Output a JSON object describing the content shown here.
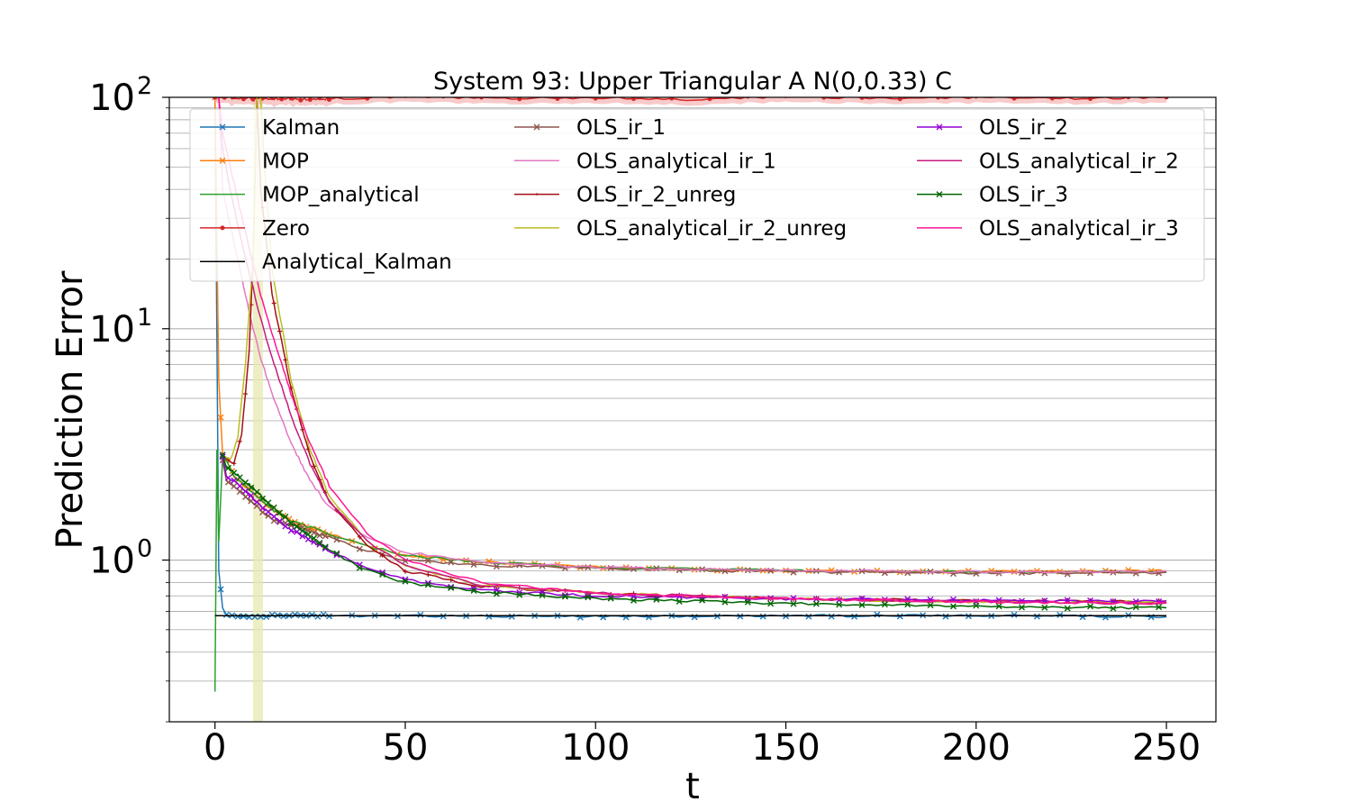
{
  "chart_data": {
    "type": "line",
    "title": "System 93: Upper Triangular A N(0,0.33) C",
    "xlabel": "t",
    "ylabel": "Prediction Error",
    "xlim": [
      -12,
      263
    ],
    "ylim": [
      0.2,
      100
    ],
    "yscale": "log",
    "grid": "y-major-and-minor",
    "legend_position": "top",
    "x_ticks": [
      0,
      50,
      100,
      150,
      200,
      250
    ],
    "x_tick_labels": [
      "0",
      "50",
      "100",
      "150",
      "200",
      "250"
    ],
    "y_ticks": [
      1,
      10,
      100
    ],
    "y_tick_labels": [
      "10",
      "10",
      "10"
    ],
    "y_tick_exponents": [
      "0",
      "1",
      "2"
    ],
    "highlight_band": {
      "x0": 10,
      "x1": 12.6,
      "color": "#e8e8b0"
    },
    "series": [
      {
        "name": "Kalman",
        "color": "#1f77b4",
        "marker": "x",
        "x": [
          0,
          1,
          2,
          3,
          5,
          10,
          20,
          50,
          100,
          150,
          200,
          250
        ],
        "values": [
          100,
          0.9,
          0.62,
          0.58,
          0.57,
          0.575,
          0.575,
          0.575,
          0.57,
          0.575,
          0.575,
          0.57
        ]
      },
      {
        "name": "MOP",
        "color": "#ff7f0e",
        "marker": "x",
        "x": [
          0,
          1,
          2,
          3,
          5,
          10,
          15,
          20,
          30,
          40,
          50,
          70,
          100,
          150,
          200,
          250
        ],
        "values": [
          100,
          6,
          2.85,
          2.7,
          2.3,
          1.95,
          1.65,
          1.48,
          1.3,
          1.15,
          1.05,
          0.98,
          0.93,
          0.9,
          0.89,
          0.9
        ]
      },
      {
        "name": "MOP_analytical",
        "color": "#2ca02c",
        "marker": "",
        "x": [
          0,
          0.5,
          1,
          2,
          3,
          5,
          10,
          15,
          20,
          30,
          40,
          50,
          70,
          100,
          150,
          200,
          250
        ],
        "values": [
          0.27,
          3,
          1.2,
          2.8,
          2.7,
          2.3,
          1.95,
          1.65,
          1.48,
          1.3,
          1.15,
          1.05,
          0.98,
          0.93,
          0.9,
          0.89,
          0.89
        ]
      },
      {
        "name": "Zero",
        "color": "#d62728",
        "marker": "o",
        "x": [
          0,
          25,
          50,
          75,
          100,
          125,
          150,
          175,
          200,
          225,
          250
        ],
        "values": [
          100,
          98,
          101,
          99,
          100,
          98,
          101,
          99,
          100,
          99,
          100
        ]
      },
      {
        "name": "Analytical_Kalman",
        "color": "#000000",
        "marker": "",
        "x": [
          0,
          250
        ],
        "values": [
          0.575,
          0.575
        ]
      },
      {
        "name": "OLS_ir_1",
        "color": "#8c564b",
        "marker": "x",
        "x": [
          2,
          3,
          5,
          10,
          15,
          20,
          30,
          40,
          50,
          70,
          100,
          150,
          200,
          250
        ],
        "values": [
          2.7,
          2.2,
          2.1,
          1.75,
          1.5,
          1.42,
          1.25,
          1.1,
          1.0,
          0.95,
          0.92,
          0.89,
          0.88,
          0.88
        ]
      },
      {
        "name": "OLS_analytical_ir_1",
        "color": "#e377c2",
        "marker": "",
        "x": [
          1,
          2,
          4,
          6,
          8,
          10,
          12,
          15,
          20,
          25,
          30,
          40,
          50,
          70,
          100,
          150,
          200,
          250
        ],
        "values": [
          100,
          40,
          28,
          20,
          14,
          10,
          7.5,
          5.2,
          3.2,
          2.2,
          1.7,
          1.25,
          1.08,
          0.98,
          0.93,
          0.9,
          0.89,
          0.89
        ]
      },
      {
        "name": "OLS_ir_2_unreg",
        "color": "#a50f15",
        "marker": "+",
        "x": [
          2,
          3,
          5,
          7,
          9,
          10,
          11,
          12,
          15,
          20,
          25,
          30,
          40,
          50,
          70,
          100,
          150,
          200,
          250
        ],
        "values": [
          2.85,
          2.75,
          2.6,
          3.5,
          8,
          20,
          100,
          40,
          14,
          5.5,
          2.8,
          1.8,
          1.15,
          0.9,
          0.77,
          0.72,
          0.68,
          0.67,
          0.66
        ]
      },
      {
        "name": "OLS_analytical_ir_2_unreg",
        "color": "#bcbd22",
        "marker": "",
        "x": [
          2,
          4,
          6,
          8,
          10,
          11,
          12,
          13,
          15,
          20,
          25,
          30,
          40,
          50,
          70,
          100,
          150,
          200,
          250
        ],
        "values": [
          2.85,
          2.7,
          3.4,
          7,
          20,
          100,
          100,
          50,
          18,
          6,
          3,
          1.9,
          1.2,
          0.95,
          0.78,
          0.72,
          0.68,
          0.66,
          0.66
        ]
      },
      {
        "name": "OLS_ir_2",
        "color": "#9400d3",
        "marker": "x",
        "x": [
          2,
          3,
          5,
          10,
          15,
          20,
          30,
          40,
          50,
          70,
          100,
          150,
          200,
          250
        ],
        "values": [
          2.8,
          2.3,
          2.2,
          1.85,
          1.55,
          1.35,
          1.1,
          0.92,
          0.82,
          0.74,
          0.7,
          0.68,
          0.67,
          0.66
        ]
      },
      {
        "name": "OLS_analytical_ir_2",
        "color": "#c51b7d",
        "marker": "",
        "x": [
          1,
          2,
          4,
          6,
          8,
          10,
          12,
          15,
          20,
          25,
          30,
          40,
          50,
          70,
          100,
          150,
          200,
          250
        ],
        "values": [
          100,
          60,
          40,
          28,
          20,
          15,
          11,
          7.5,
          4.2,
          2.6,
          1.8,
          1.2,
          0.95,
          0.78,
          0.72,
          0.68,
          0.66,
          0.65
        ]
      },
      {
        "name": "OLS_ir_3",
        "color": "#006400",
        "marker": "x",
        "x": [
          2,
          3,
          5,
          10,
          15,
          20,
          30,
          40,
          50,
          70,
          100,
          150,
          200,
          250
        ],
        "values": [
          2.85,
          2.5,
          2.4,
          2.05,
          1.7,
          1.45,
          1.1,
          0.9,
          0.8,
          0.73,
          0.68,
          0.65,
          0.63,
          0.62
        ]
      },
      {
        "name": "OLS_analytical_ir_3",
        "color": "#ff1493",
        "marker": "",
        "x": [
          1,
          2,
          4,
          6,
          8,
          10,
          12,
          15,
          20,
          25,
          30,
          40,
          50,
          70,
          100,
          150,
          200,
          250
        ],
        "values": [
          100,
          70,
          50,
          36,
          26,
          19,
          14,
          9.5,
          5.2,
          3.2,
          2.1,
          1.3,
          1.0,
          0.8,
          0.72,
          0.68,
          0.66,
          0.65
        ]
      }
    ]
  }
}
